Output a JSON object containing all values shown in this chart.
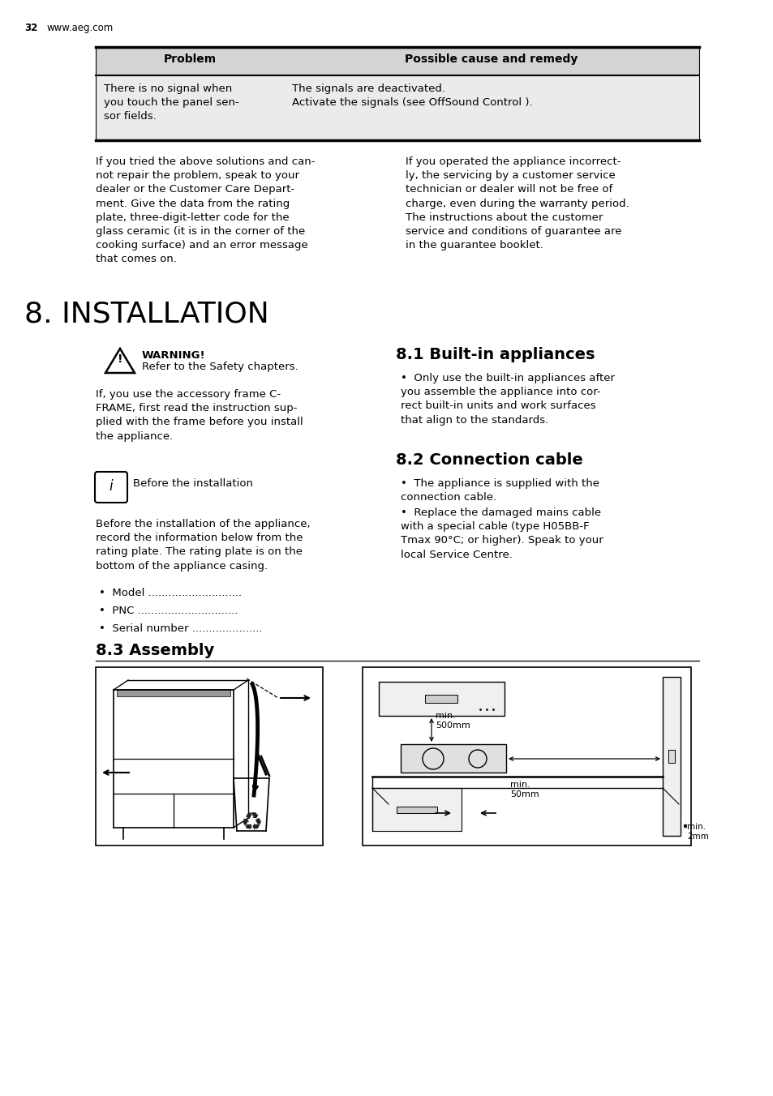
{
  "page_number": "32",
  "website": "www.aeg.com",
  "bg_color": "#ffffff",
  "table_header_bg": "#d4d4d4",
  "table_row_bg": "#ebebeb",
  "table_header": [
    "Problem",
    "Possible cause and remedy"
  ],
  "table_row_left": "There is no signal when\nyou touch the panel sen-\nsor fields.",
  "table_row_right": "The signals are deactivated.\nActivate the signals (see OffSound Control ).",
  "paragraph_left": "If you tried the above solutions and can-\nnot repair the problem, speak to your\ndealer or the Customer Care Depart-\nment. Give the data from the rating\nplate, three-digit-letter code for the\nglass ceramic (it is in the corner of the\ncooking surface) and an error message\nthat comes on.",
  "paragraph_right": "If you operated the appliance incorrect-\nly, the servicing by a customer service\ntechnician or dealer will not be free of\ncharge, even during the warranty period.\nThe instructions about the customer\nservice and conditions of guarantee are\nin the guarantee booklet.",
  "section_title": "8. INSTALLATION",
  "warning_title": "WARNING!",
  "warning_text": "Refer to the Safety chapters.",
  "info_text": "Before the installation",
  "left_body_text": "If, you use the accessory frame C-\nFRAME, first read the instruction sup-\nplied with the frame before you install\nthe appliance.",
  "left_body_text2": "Before the installation of the appliance,\nrecord the information below from the\nrating plate. The rating plate is on the\nbottom of the appliance casing.",
  "bullet_items_left": [
    "Model ............................",
    "PNC ..............................",
    "Serial number ....................."
  ],
  "section_81": "8.1 Built-in appliances",
  "bullet_81": "Only use the built-in appliances after\nyou assemble the appliance into cor-\nrect built-in units and work surfaces\nthat align to the standards.",
  "section_82": "8.2 Connection cable",
  "bullet_82_1": "The appliance is supplied with the\nconnection cable.",
  "bullet_82_2": "Replace the damaged mains cable\nwith a special cable (type H05BB-F\nTmax 90°C; or higher). Speak to your\nlocal Service Centre.",
  "section_83": "8.3 Assembly",
  "text_color": "#000000"
}
